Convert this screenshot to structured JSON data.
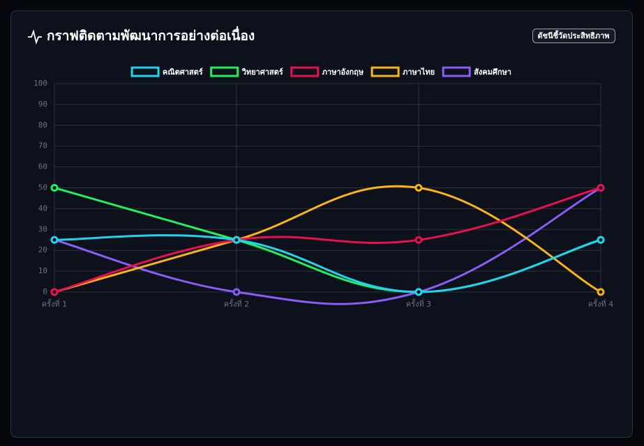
{
  "header": {
    "badge": "ดัชนีชี้วัดประสิทธิภาพ"
  },
  "chart_data": {
    "type": "line",
    "title": "กราฟติดตามพัฒนาการอย่างต่อเนื่อง",
    "categories": [
      "ครั้งที่ 1",
      "ครั้งที่ 2",
      "ครั้งที่ 3",
      "ครั้งที่ 4"
    ],
    "series": [
      {
        "name": "คณิตศาสตร์",
        "color": "#22d3ee",
        "values": [
          25,
          25,
          0,
          25
        ]
      },
      {
        "name": "วิทยาศาสตร์",
        "color": "#22ee5e",
        "values": [
          50,
          25,
          0,
          25
        ]
      },
      {
        "name": "ภาษาอังกฤษ",
        "color": "#e8114f",
        "values": [
          0,
          25,
          25,
          50
        ]
      },
      {
        "name": "ภาษาไทย",
        "color": "#fbb31c",
        "values": [
          0,
          25,
          50,
          0
        ]
      },
      {
        "name": "สังคมศึกษา",
        "color": "#8b5cf6",
        "values": [
          25,
          0,
          0,
          50
        ]
      }
    ],
    "ylim": [
      0,
      100
    ],
    "yticks": [
      0,
      10,
      20,
      30,
      40,
      50,
      60,
      70,
      80,
      90,
      100
    ],
    "grid": true
  }
}
